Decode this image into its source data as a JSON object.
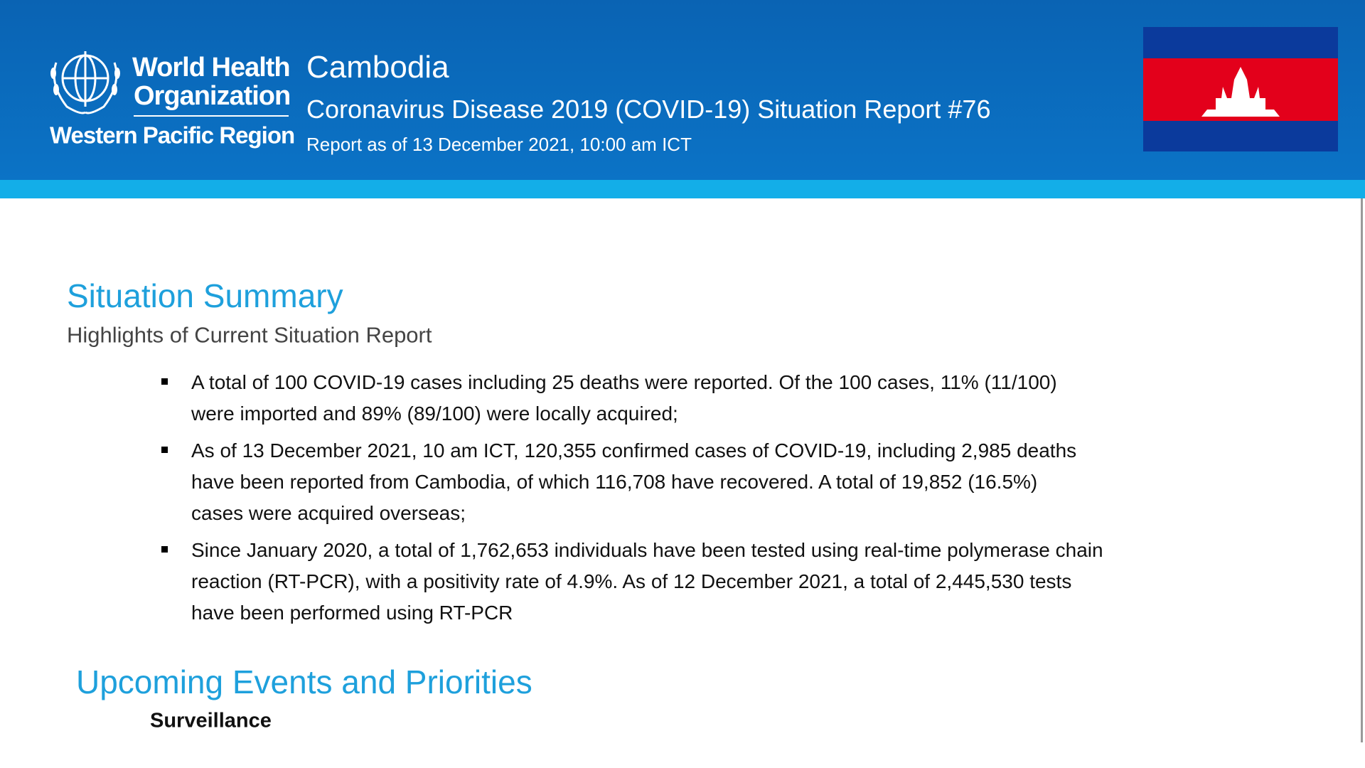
{
  "header": {
    "org_line1": "World Health",
    "org_line2": "Organization",
    "region": "Western Pacific Region",
    "country": "Cambodia",
    "title": "Coronavirus Disease 2019 (COVID-19) Situation Report #76",
    "date": "Report as of 13 December 2021, 10:00 am ICT"
  },
  "summary": {
    "heading": "Situation Summary",
    "subheading": "Highlights of Current Situation Report",
    "bullets": [
      [
        "A total of 100 COVID-19 cases including 25 deaths were reported. Of the 100 cases, 11% (11/100)",
        "were imported and 89% (89/100) were locally acquired;"
      ],
      [
        "As of 13 December 2021, 10 am ICT, 120,355 confirmed cases of COVID-19, including 2,985 deaths",
        "have been reported from Cambodia, of which 116,708 have recovered. A total of 19,852 (16.5%)",
        "cases were acquired overseas;"
      ],
      [
        "Since January 2020, a total of 1,762,653 individuals have been tested using real-time polymerase chain",
        "reaction (RT-PCR), with a positivity rate of 4.9%. As of 12 December 2021, a total of 2,445,530 tests",
        "have been performed using RT-PCR"
      ]
    ]
  },
  "upcoming": {
    "heading": "Upcoming Events and Priorities",
    "subheading": "Surveillance"
  }
}
